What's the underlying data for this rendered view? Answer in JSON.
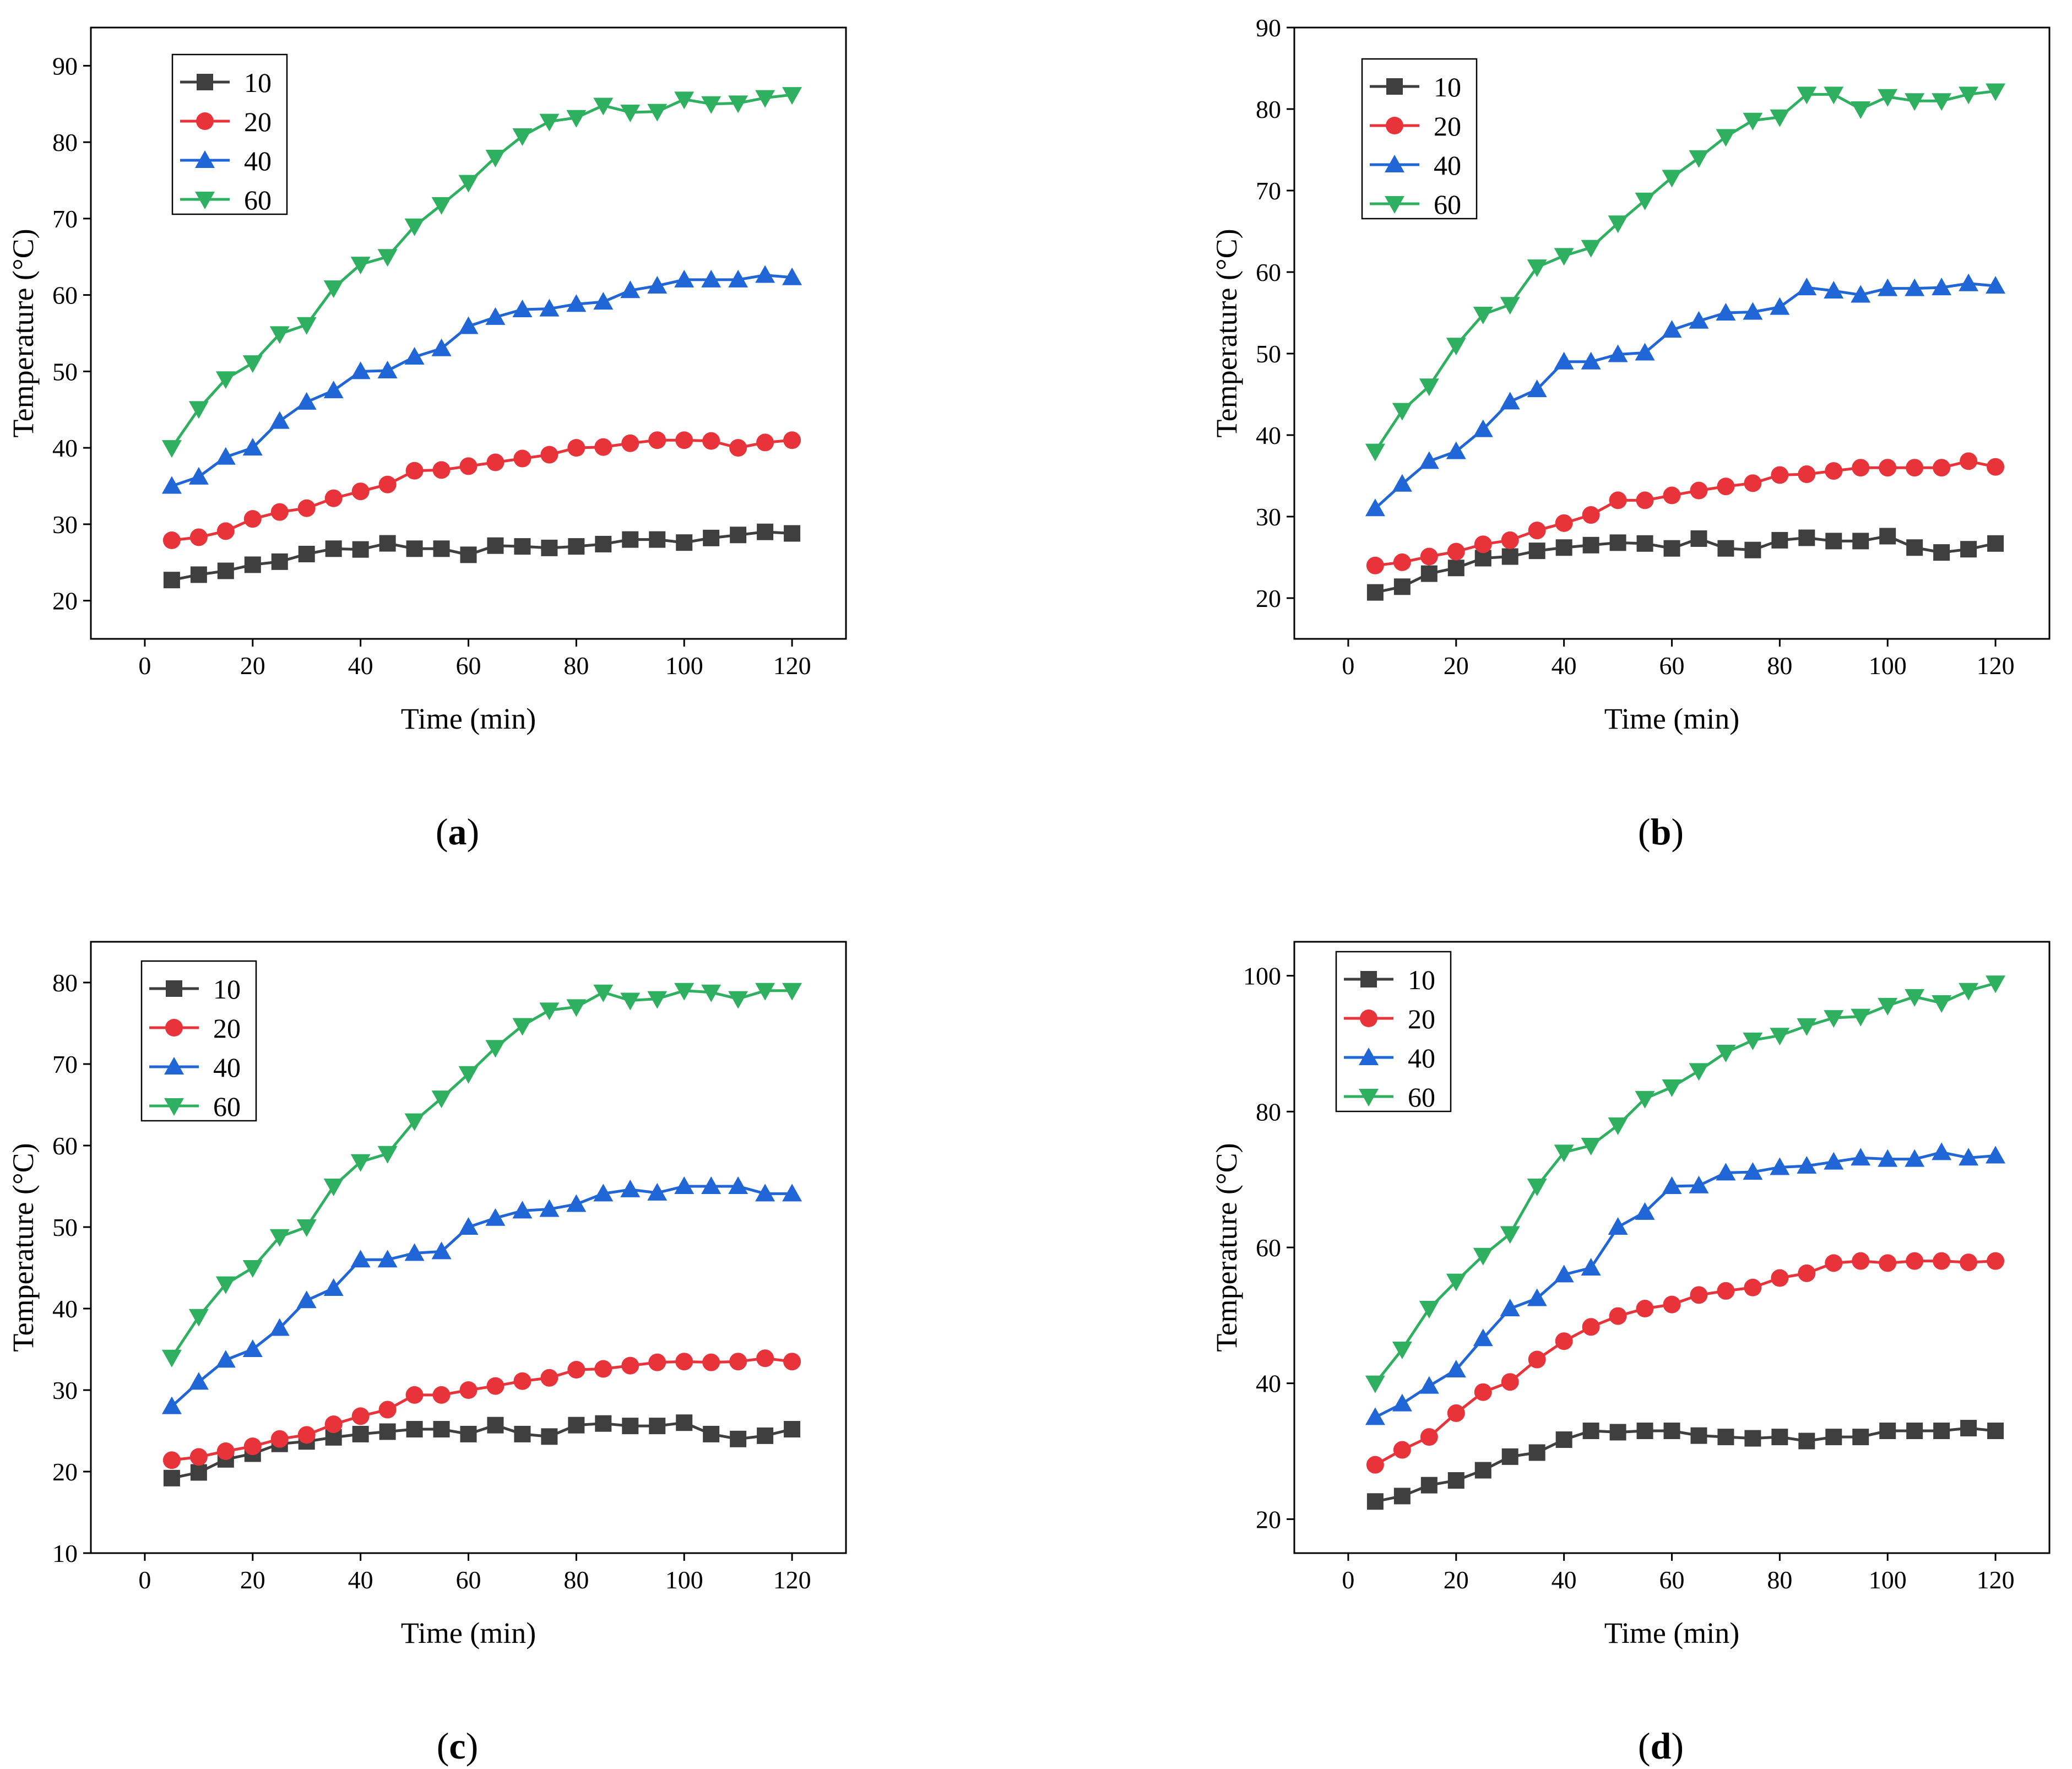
{
  "figure": {
    "x_label": "Time (min)",
    "y_label": "Temperature (°C)",
    "legend_labels": [
      "10",
      "20",
      "40",
      "60"
    ],
    "series_colors": [
      "#3f3f3f",
      "#e8333a",
      "#2066d6",
      "#2fb060"
    ],
    "series_markers": [
      "square",
      "circle",
      "triangle-up",
      "triangle-down"
    ]
  },
  "chart_data": [
    {
      "type": "line",
      "panel_label": "a",
      "xlabel": "Time (min)",
      "ylabel": "Temperature (°C)",
      "xlim": [
        -10,
        130
      ],
      "ylim": [
        15,
        95
      ],
      "xticks": [
        0,
        20,
        40,
        60,
        80,
        100,
        120
      ],
      "yticks": [
        20,
        30,
        40,
        50,
        60,
        70,
        80,
        90
      ],
      "x": [
        5,
        10,
        15,
        20,
        25,
        30,
        35,
        40,
        45,
        50,
        55,
        60,
        65,
        70,
        75,
        80,
        85,
        90,
        95,
        100,
        105,
        110,
        115,
        120
      ],
      "series": [
        {
          "name": "10",
          "values": [
            22.7,
            23.4,
            23.9,
            24.7,
            25.1,
            26.1,
            26.8,
            26.7,
            27.5,
            26.8,
            26.8,
            26.0,
            27.2,
            27.1,
            26.9,
            27.1,
            27.4,
            28.0,
            28.0,
            27.6,
            28.2,
            28.6,
            29.0,
            28.8
          ]
        },
        {
          "name": "20",
          "values": [
            27.9,
            28.3,
            29.1,
            30.7,
            31.6,
            32.1,
            33.4,
            34.3,
            35.2,
            37.0,
            37.1,
            37.6,
            38.1,
            38.6,
            39.1,
            40.0,
            40.1,
            40.6,
            41.0,
            41.0,
            40.9,
            40.0,
            40.7,
            41.0
          ]
        },
        {
          "name": "40",
          "values": [
            35.0,
            36.2,
            38.8,
            40.0,
            43.5,
            46.0,
            47.5,
            50.0,
            50.1,
            51.9,
            53.0,
            55.9,
            57.1,
            58.1,
            58.2,
            58.8,
            59.1,
            60.6,
            61.2,
            62.0,
            62.0,
            62.0,
            62.6,
            62.3
          ]
        },
        {
          "name": "60",
          "values": [
            40.0,
            45.1,
            49.0,
            51.1,
            54.9,
            56.1,
            60.9,
            64.0,
            65.0,
            69.0,
            71.8,
            74.7,
            78.0,
            80.8,
            82.7,
            83.2,
            84.8,
            83.9,
            84.0,
            85.6,
            85.0,
            85.1,
            85.8,
            86.2
          ]
        }
      ]
    },
    {
      "type": "line",
      "panel_label": "b",
      "xlabel": "Time (min)",
      "ylabel": "Temperature (°C)",
      "xlim": [
        -10,
        130
      ],
      "ylim": [
        15,
        90
      ],
      "xticks": [
        0,
        20,
        40,
        60,
        80,
        100,
        120
      ],
      "yticks": [
        20,
        30,
        40,
        50,
        60,
        70,
        80,
        90
      ],
      "x": [
        5,
        10,
        15,
        20,
        25,
        30,
        35,
        40,
        45,
        50,
        55,
        60,
        65,
        70,
        75,
        80,
        85,
        90,
        95,
        100,
        105,
        110,
        115,
        120
      ],
      "series": [
        {
          "name": "10",
          "values": [
            20.7,
            21.4,
            23.0,
            23.7,
            24.9,
            25.1,
            25.8,
            26.2,
            26.5,
            26.8,
            26.7,
            26.1,
            27.3,
            26.1,
            25.9,
            27.1,
            27.4,
            27.0,
            27.0,
            27.6,
            26.2,
            25.6,
            26.0,
            26.7
          ]
        },
        {
          "name": "20",
          "values": [
            24.0,
            24.4,
            25.1,
            25.7,
            26.6,
            27.1,
            28.3,
            29.2,
            30.2,
            32.0,
            32.0,
            32.6,
            33.2,
            33.7,
            34.1,
            35.1,
            35.2,
            35.6,
            36.0,
            36.0,
            36.0,
            36.0,
            36.8,
            36.1
          ]
        },
        {
          "name": "40",
          "values": [
            31.0,
            34.0,
            36.8,
            38.0,
            40.7,
            44.1,
            45.6,
            49.0,
            49.0,
            49.9,
            50.1,
            52.9,
            54.0,
            55.0,
            55.1,
            55.7,
            58.1,
            57.7,
            57.2,
            58.0,
            58.0,
            58.1,
            58.6,
            58.3
          ]
        },
        {
          "name": "60",
          "values": [
            38.0,
            43.0,
            46.0,
            51.0,
            54.8,
            56.0,
            60.6,
            62.0,
            63.0,
            66.0,
            68.8,
            71.6,
            74.0,
            76.6,
            78.6,
            79.0,
            81.8,
            81.8,
            80.0,
            81.5,
            81.0,
            81.0,
            81.8,
            82.2
          ]
        }
      ]
    },
    {
      "type": "line",
      "panel_label": "c",
      "xlabel": "Time (min)",
      "ylabel": "Temperature (°C)",
      "xlim": [
        -10,
        130
      ],
      "ylim": [
        10,
        85
      ],
      "xticks": [
        0,
        20,
        40,
        60,
        80,
        100,
        120
      ],
      "yticks": [
        10,
        20,
        30,
        40,
        50,
        60,
        70,
        80
      ],
      "x": [
        5,
        10,
        15,
        20,
        25,
        30,
        35,
        40,
        45,
        50,
        55,
        60,
        65,
        70,
        75,
        80,
        85,
        90,
        95,
        100,
        105,
        110,
        115,
        120
      ],
      "series": [
        {
          "name": "10",
          "values": [
            19.2,
            19.9,
            21.5,
            22.2,
            23.4,
            23.7,
            24.2,
            24.6,
            24.9,
            25.2,
            25.2,
            24.6,
            25.7,
            24.6,
            24.3,
            25.7,
            25.9,
            25.6,
            25.6,
            26.0,
            24.6,
            24.0,
            24.4,
            25.2
          ]
        },
        {
          "name": "20",
          "values": [
            21.4,
            21.8,
            22.5,
            23.1,
            24.0,
            24.5,
            25.8,
            26.8,
            27.6,
            29.4,
            29.4,
            30.0,
            30.5,
            31.1,
            31.5,
            32.5,
            32.6,
            33.0,
            33.4,
            33.5,
            33.4,
            33.5,
            33.9,
            33.5
          ]
        },
        {
          "name": "40",
          "values": [
            28.0,
            31.0,
            33.7,
            35.0,
            37.6,
            41.0,
            42.5,
            46.0,
            46.0,
            46.8,
            47.0,
            50.0,
            51.1,
            52.0,
            52.2,
            52.8,
            54.1,
            54.6,
            54.2,
            55.0,
            55.0,
            55.0,
            54.1,
            54.1
          ]
        },
        {
          "name": "60",
          "values": [
            34.0,
            39.0,
            43.0,
            45.0,
            48.8,
            50.0,
            55.0,
            58.0,
            59.0,
            63.0,
            65.8,
            68.8,
            72.0,
            74.7,
            76.6,
            77.0,
            78.8,
            77.8,
            78.0,
            79.0,
            78.8,
            78.0,
            79.0,
            79.0
          ]
        }
      ]
    },
    {
      "type": "line",
      "panel_label": "d",
      "xlabel": "Time (min)",
      "ylabel": "Temperature (°C)",
      "xlim": [
        -10,
        130
      ],
      "ylim": [
        15,
        105
      ],
      "xticks": [
        0,
        20,
        40,
        60,
        80,
        100,
        120
      ],
      "yticks": [
        20,
        40,
        60,
        80,
        100
      ],
      "x": [
        5,
        10,
        15,
        20,
        25,
        30,
        35,
        40,
        45,
        50,
        55,
        60,
        65,
        70,
        75,
        80,
        85,
        90,
        95,
        100,
        105,
        110,
        115,
        120
      ],
      "series": [
        {
          "name": "10",
          "values": [
            22.6,
            23.4,
            25.0,
            25.7,
            27.2,
            29.2,
            29.8,
            31.7,
            33.0,
            32.8,
            33.0,
            33.0,
            32.3,
            32.1,
            31.9,
            32.1,
            31.5,
            32.1,
            32.1,
            33.0,
            33.0,
            33.0,
            33.4,
            33.0
          ]
        },
        {
          "name": "20",
          "values": [
            28.0,
            30.2,
            32.1,
            35.6,
            38.7,
            40.2,
            43.5,
            46.2,
            48.3,
            49.9,
            51.0,
            51.6,
            53.0,
            53.6,
            54.1,
            55.5,
            56.2,
            57.7,
            58.0,
            57.7,
            58.0,
            58.0,
            57.8,
            58.0
          ]
        },
        {
          "name": "40",
          "values": [
            35.0,
            37.0,
            39.6,
            42.0,
            46.6,
            51.0,
            52.5,
            56.0,
            57.0,
            63.0,
            65.2,
            69.0,
            69.1,
            71.0,
            71.1,
            71.8,
            72.0,
            72.6,
            73.2,
            73.0,
            73.0,
            74.0,
            73.2,
            73.5
          ]
        },
        {
          "name": "60",
          "values": [
            40.0,
            45.0,
            51.0,
            55.0,
            58.8,
            62.0,
            69.0,
            74.0,
            75.0,
            78.0,
            81.9,
            83.6,
            86.0,
            88.7,
            90.5,
            91.2,
            92.6,
            93.8,
            94.0,
            95.6,
            96.9,
            96.0,
            97.8,
            98.9
          ]
        }
      ]
    }
  ]
}
